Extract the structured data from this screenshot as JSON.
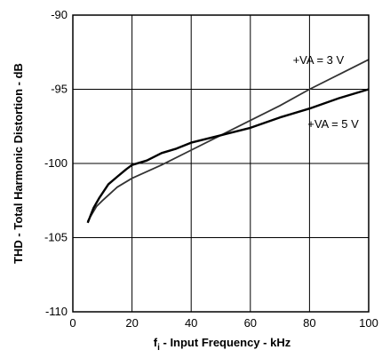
{
  "chart_data": {
    "type": "line",
    "title": "",
    "xlabel_main": "f",
    "xlabel_sub": "i",
    "xlabel_rest": " - Input Frequency - kHz",
    "ylabel": "THD - Total Harmonic Distortion - dB",
    "xlim": [
      0,
      100
    ],
    "ylim": [
      -110,
      -90
    ],
    "x_ticks": [
      0,
      20,
      40,
      60,
      80,
      100
    ],
    "y_ticks": [
      -110,
      -105,
      -100,
      -95,
      -90
    ],
    "x_tick_labels": [
      "0",
      "20",
      "40",
      "60",
      "80",
      "100"
    ],
    "y_tick_labels": [
      "-110",
      "-105",
      "-100",
      "-95",
      "-90"
    ],
    "grid": true,
    "series": [
      {
        "name": "+VA = 3 V",
        "color": "#333333",
        "x": [
          5,
          8,
          10,
          15,
          20,
          30,
          40,
          50,
          60,
          70,
          80,
          90,
          100
        ],
        "y": [
          -103.9,
          -102.9,
          -102.5,
          -101.6,
          -101.0,
          -100.1,
          -99.1,
          -98.1,
          -97.1,
          -96.1,
          -95.0,
          -94.0,
          -93.0
        ]
      },
      {
        "name": "+VA = 5 V",
        "color": "#000000",
        "x": [
          5,
          7,
          9,
          12,
          15,
          18,
          20,
          25,
          30,
          35,
          40,
          50,
          60,
          70,
          80,
          90,
          100
        ],
        "y": [
          -104.0,
          -103.0,
          -102.3,
          -101.4,
          -100.9,
          -100.4,
          -100.1,
          -99.8,
          -99.3,
          -99.0,
          -98.6,
          -98.1,
          -97.6,
          -96.9,
          -96.3,
          -95.6,
          -95.0
        ]
      }
    ],
    "annotations": [
      {
        "text": "+VA = 3 V",
        "x": 83,
        "y": -93.3
      },
      {
        "text": "+VA = 5 V",
        "x": 88,
        "y": -97.6
      }
    ]
  }
}
